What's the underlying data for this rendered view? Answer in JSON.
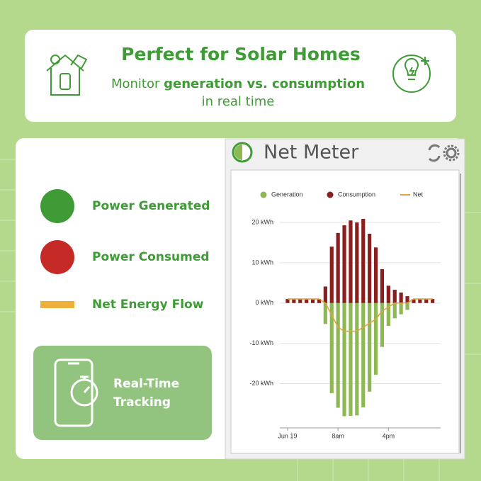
{
  "header": {
    "title": "Perfect for Solar Homes",
    "subtitle_parts": [
      "Monitor",
      "generation vs. consumption",
      "in real time"
    ]
  },
  "legend": [
    {
      "label": "Power Generated",
      "color": "#3f9b35"
    },
    {
      "label": "Power Consumed",
      "color": "#c62a26"
    },
    {
      "label": "Net Energy Flow",
      "color": "#eeb03a"
    }
  ],
  "badge": {
    "label_lines": [
      "Real-Time",
      "Tracking"
    ]
  },
  "widget": {
    "title": "Net Meter"
  },
  "chart_data": {
    "type": "bar",
    "categories": [
      "Jun 19",
      null,
      null,
      null,
      null,
      null,
      null,
      null,
      "8am",
      null,
      null,
      null,
      null,
      null,
      null,
      null,
      "4pm",
      null,
      null,
      null,
      null,
      null,
      null,
      null
    ],
    "series": [
      {
        "name": "Generation",
        "color": "#8db854",
        "values": [
          0,
          0,
          0,
          0,
          0,
          0,
          -5.2,
          -22.4,
          -26,
          -28.1,
          -28,
          -27.9,
          -25.9,
          -22,
          -17.8,
          -10.9,
          -5.7,
          -3.8,
          -2.8,
          -1.7,
          0,
          0,
          0,
          0
        ]
      },
      {
        "name": "Consumption",
        "color": "#8b1e1e",
        "values": [
          1,
          1,
          1,
          1,
          1,
          1,
          4.1,
          14,
          17.4,
          19.3,
          20.5,
          20,
          20.9,
          17.2,
          13.8,
          8.4,
          4.3,
          3.3,
          2.6,
          1.7,
          1,
          1,
          1,
          1
        ]
      },
      {
        "name": "Net",
        "color": "#e3a23c",
        "type": "line",
        "values": [
          1,
          1,
          1,
          1,
          1,
          1,
          0,
          -3,
          -6,
          -7,
          -7,
          -7,
          -6,
          -5,
          -4,
          -2,
          -1,
          0,
          0,
          0,
          1,
          1,
          1,
          1
        ]
      }
    ],
    "ylim": [
      -31,
      23
    ],
    "yticks": [
      {
        "value": 20,
        "label": "20 kWh"
      },
      {
        "value": 10,
        "label": "10 kWh"
      },
      {
        "value": 0,
        "label": "0 kWh"
      },
      {
        "value": -10,
        "label": "-10 kWh"
      },
      {
        "value": -20,
        "label": "-20 kWh"
      }
    ],
    "grid": true
  }
}
